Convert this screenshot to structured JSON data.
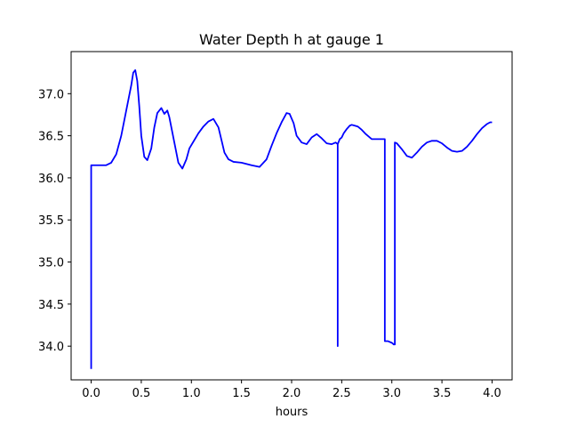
{
  "chart_data": {
    "type": "line",
    "title": "Water Depth h at gauge 1",
    "xlabel": "hours",
    "ylabel": "",
    "xlim": [
      -0.2,
      4.2
    ],
    "ylim": [
      33.6,
      37.5
    ],
    "xticks": [
      0.0,
      0.5,
      1.0,
      1.5,
      2.0,
      2.5,
      3.0,
      3.5,
      4.0
    ],
    "xtick_labels": [
      "0.0",
      "0.5",
      "1.0",
      "1.5",
      "2.0",
      "2.5",
      "3.0",
      "3.5",
      "4.0"
    ],
    "yticks": [
      34.0,
      34.5,
      35.0,
      35.5,
      36.0,
      36.5,
      37.0
    ],
    "ytick_labels": [
      "34.0",
      "34.5",
      "35.0",
      "35.5",
      "36.0",
      "36.5",
      "37.0"
    ],
    "grid": false,
    "legend": "none",
    "series": [
      {
        "color": "#0000ff",
        "x": [
          0.0,
          0.0,
          0.0,
          0.1,
          0.15,
          0.2,
          0.25,
          0.3,
          0.35,
          0.4,
          0.42,
          0.44,
          0.46,
          0.48,
          0.5,
          0.53,
          0.56,
          0.6,
          0.63,
          0.66,
          0.7,
          0.73,
          0.76,
          0.78,
          0.8,
          0.83,
          0.87,
          0.91,
          0.95,
          0.98,
          1.02,
          1.07,
          1.12,
          1.17,
          1.22,
          1.27,
          1.3,
          1.33,
          1.37,
          1.42,
          1.5,
          1.6,
          1.68,
          1.75,
          1.8,
          1.85,
          1.9,
          1.95,
          1.98,
          2.02,
          2.05,
          2.1,
          2.15,
          2.2,
          2.25,
          2.3,
          2.35,
          2.4,
          2.44,
          2.46,
          2.46,
          2.46,
          2.48,
          2.5,
          2.52,
          2.55,
          2.58,
          2.6,
          2.63,
          2.66,
          2.7,
          2.74,
          2.8,
          2.85,
          2.9,
          2.93,
          2.93,
          2.96,
          3.0,
          3.02,
          3.03,
          3.03,
          3.05,
          3.1,
          3.15,
          3.2,
          3.25,
          3.3,
          3.35,
          3.4,
          3.45,
          3.5,
          3.55,
          3.6,
          3.65,
          3.7,
          3.75,
          3.8,
          3.85,
          3.9,
          3.95,
          3.98,
          4.0
        ],
        "y": [
          33.73,
          36.15,
          36.15,
          36.15,
          36.15,
          36.18,
          36.28,
          36.5,
          36.8,
          37.1,
          37.25,
          37.28,
          37.15,
          36.85,
          36.5,
          36.25,
          36.21,
          36.35,
          36.6,
          36.77,
          36.83,
          36.76,
          36.8,
          36.72,
          36.6,
          36.42,
          36.18,
          36.11,
          36.22,
          36.35,
          36.43,
          36.53,
          36.61,
          36.67,
          36.7,
          36.6,
          36.45,
          36.3,
          36.22,
          36.19,
          36.18,
          36.15,
          36.13,
          36.22,
          36.38,
          36.53,
          36.66,
          36.77,
          36.76,
          36.65,
          36.5,
          36.42,
          36.4,
          36.48,
          36.52,
          36.47,
          36.41,
          36.4,
          36.42,
          36.4,
          34.0,
          36.4,
          36.46,
          36.48,
          36.53,
          36.58,
          36.62,
          36.63,
          36.62,
          36.61,
          36.57,
          36.52,
          36.46,
          36.46,
          36.46,
          36.46,
          34.06,
          34.06,
          34.04,
          34.02,
          34.02,
          36.42,
          36.41,
          36.34,
          36.26,
          36.24,
          36.3,
          36.37,
          36.42,
          36.44,
          36.44,
          36.41,
          36.36,
          36.32,
          36.31,
          36.32,
          36.37,
          36.44,
          36.52,
          36.59,
          36.64,
          36.66,
          36.66
        ]
      }
    ]
  }
}
